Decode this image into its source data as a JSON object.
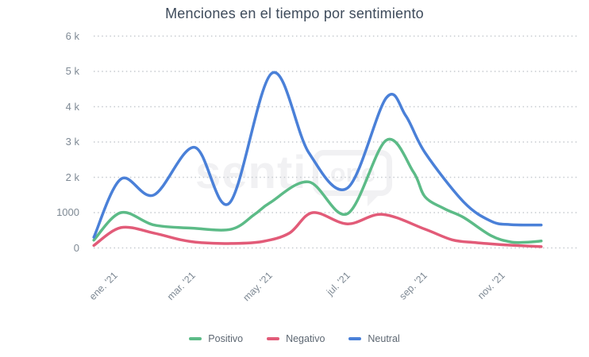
{
  "title": "Menciones en el tiempo por sentimiento",
  "watermark": {
    "prefix": "senti",
    "boxed": "one"
  },
  "colors": {
    "positive": "#5cbb87",
    "negative": "#e25b78",
    "neutral": "#4a80d8",
    "grid": "#c6cacf",
    "title_text": "#3e4b5b",
    "axis_text": "#7e8994",
    "legend_text": "#5d6772",
    "background": "#ffffff"
  },
  "chart_data": {
    "type": "line",
    "title": "Menciones en el tiempo por sentimiento",
    "xlabel": "",
    "ylabel": "",
    "ylim": [
      0,
      6000
    ],
    "grid": "dotted-horizontal",
    "legend_position": "bottom",
    "x_ticks": [
      {
        "month": 0,
        "label": "ene. '21"
      },
      {
        "month": 2,
        "label": "mar. '21"
      },
      {
        "month": 4,
        "label": "may. '21"
      },
      {
        "month": 6,
        "label": "jul. '21"
      },
      {
        "month": 8,
        "label": "sep. '21"
      },
      {
        "month": 10,
        "label": "nov. '21"
      }
    ],
    "y_ticks": [
      {
        "value": 0,
        "label": "0"
      },
      {
        "value": 1000,
        "label": "1000"
      },
      {
        "value": 2000,
        "label": "2 k"
      },
      {
        "value": 3000,
        "label": "3 k"
      },
      {
        "value": 4000,
        "label": "4 k"
      },
      {
        "value": 5000,
        "label": "5 k"
      },
      {
        "value": 6000,
        "label": "6 k"
      }
    ],
    "series": [
      {
        "name": "Positivo",
        "color_key": "positive",
        "points": [
          [
            -0.55,
            220
          ],
          [
            0.15,
            1000
          ],
          [
            1,
            650
          ],
          [
            2,
            560
          ],
          [
            3,
            530
          ],
          [
            3.6,
            950
          ],
          [
            4,
            1280
          ],
          [
            5,
            1870
          ],
          [
            6,
            970
          ],
          [
            7,
            3050
          ],
          [
            7.7,
            2150
          ],
          [
            8,
            1450
          ],
          [
            8.5,
            1110
          ],
          [
            9,
            860
          ],
          [
            9.7,
            350
          ],
          [
            10.2,
            170
          ],
          [
            10.6,
            160
          ],
          [
            11,
            195
          ]
        ]
      },
      {
        "name": "Negativo",
        "color_key": "negative",
        "points": [
          [
            -0.55,
            70
          ],
          [
            0.15,
            575
          ],
          [
            1,
            420
          ],
          [
            1.7,
            230
          ],
          [
            2.2,
            150
          ],
          [
            3,
            125
          ],
          [
            3.8,
            180
          ],
          [
            4.5,
            420
          ],
          [
            5.1,
            1000
          ],
          [
            6,
            680
          ],
          [
            6.9,
            950
          ],
          [
            8,
            530
          ],
          [
            8.7,
            230
          ],
          [
            9.3,
            150
          ],
          [
            10,
            90
          ],
          [
            11,
            35
          ]
        ]
      },
      {
        "name": "Neutral",
        "color_key": "neutral",
        "points": [
          [
            -0.55,
            300
          ],
          [
            0.15,
            1950
          ],
          [
            1,
            1500
          ],
          [
            2.05,
            2850
          ],
          [
            2.95,
            1270
          ],
          [
            4.05,
            4950
          ],
          [
            5,
            2700
          ],
          [
            6,
            1700
          ],
          [
            7,
            4250
          ],
          [
            7.5,
            3750
          ],
          [
            8,
            2700
          ],
          [
            9,
            1300
          ],
          [
            9.7,
            760
          ],
          [
            10.2,
            660
          ],
          [
            11,
            650
          ]
        ]
      }
    ]
  },
  "legend": [
    {
      "label": "Positivo"
    },
    {
      "label": "Negativo"
    },
    {
      "label": "Neutral"
    }
  ]
}
